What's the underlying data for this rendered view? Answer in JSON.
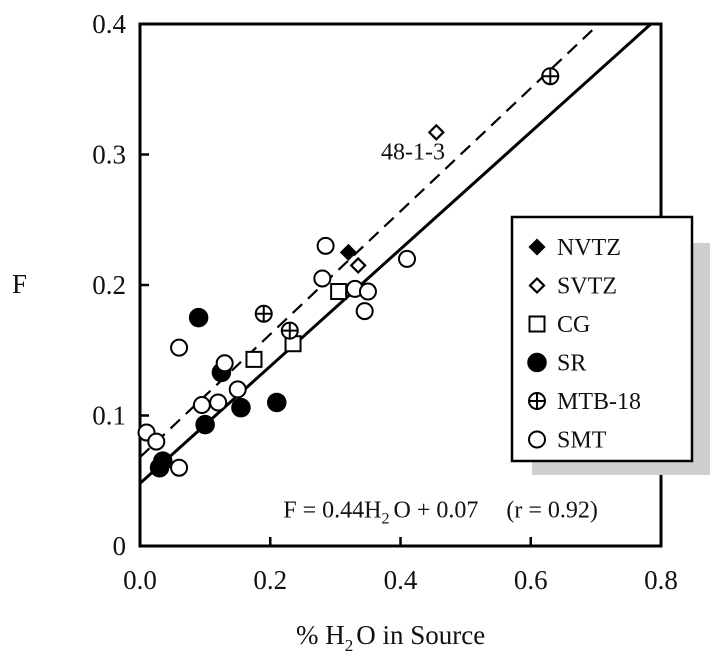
{
  "chart_data": {
    "type": "scatter",
    "xlabel_parts": [
      "% H",
      "2",
      "O in Source"
    ],
    "ylabel": "F",
    "xlim": [
      0.0,
      0.8
    ],
    "ylim": [
      0,
      0.4
    ],
    "x_ticks": [
      0.0,
      0.2,
      0.4,
      0.6,
      0.8
    ],
    "x_tick_labels": [
      "0.0",
      "0.2",
      "0.4",
      "0.6",
      "0.8"
    ],
    "y_ticks": [
      0,
      0.1,
      0.2,
      0.3,
      0.4
    ],
    "y_tick_labels": [
      "0",
      "0.1",
      "0.2",
      "0.3",
      "0.4"
    ],
    "grid": false,
    "legend_position": "right",
    "series": [
      {
        "name": "NVTZ",
        "marker": "diamond-filled",
        "points": [
          [
            0.32,
            0.225
          ]
        ]
      },
      {
        "name": "SVTZ",
        "marker": "diamond-open",
        "points": [
          [
            0.335,
            0.215
          ],
          [
            0.455,
            0.317
          ]
        ]
      },
      {
        "name": "CG",
        "marker": "square-open",
        "points": [
          [
            0.175,
            0.143
          ],
          [
            0.235,
            0.155
          ],
          [
            0.305,
            0.195
          ]
        ]
      },
      {
        "name": "SR",
        "marker": "circle-filled",
        "points": [
          [
            0.03,
            0.06
          ],
          [
            0.035,
            0.065
          ],
          [
            0.09,
            0.175
          ],
          [
            0.1,
            0.093
          ],
          [
            0.125,
            0.133
          ],
          [
            0.155,
            0.106
          ],
          [
            0.21,
            0.11
          ]
        ]
      },
      {
        "name": "MTB-18",
        "marker": "circle-plus",
        "points": [
          [
            0.19,
            0.178
          ],
          [
            0.23,
            0.165
          ],
          [
            0.63,
            0.36
          ]
        ]
      },
      {
        "name": "SMT",
        "marker": "circle-open",
        "points": [
          [
            0.01,
            0.087
          ],
          [
            0.025,
            0.08
          ],
          [
            0.06,
            0.06
          ],
          [
            0.06,
            0.152
          ],
          [
            0.095,
            0.108
          ],
          [
            0.12,
            0.11
          ],
          [
            0.13,
            0.14
          ],
          [
            0.15,
            0.12
          ],
          [
            0.28,
            0.205
          ],
          [
            0.285,
            0.23
          ],
          [
            0.33,
            0.197
          ],
          [
            0.345,
            0.18
          ],
          [
            0.35,
            0.195
          ],
          [
            0.41,
            0.22
          ]
        ]
      }
    ],
    "fit_lines": [
      {
        "style": "solid",
        "x": [
          0.0,
          0.8
        ],
        "y": [
          0.048,
          0.407
        ]
      },
      {
        "style": "dashed",
        "x": [
          0.0,
          0.8
        ],
        "y": [
          0.068,
          0.445
        ]
      }
    ],
    "annotations": [
      {
        "text": "48-1-3",
        "x": 0.37,
        "y": 0.296
      }
    ],
    "equation": {
      "parts": [
        "F = 0.44H",
        "2",
        "O + 0.07",
        "(r = 0.92)"
      ],
      "x": 0.22,
      "y": 0.022
    }
  }
}
